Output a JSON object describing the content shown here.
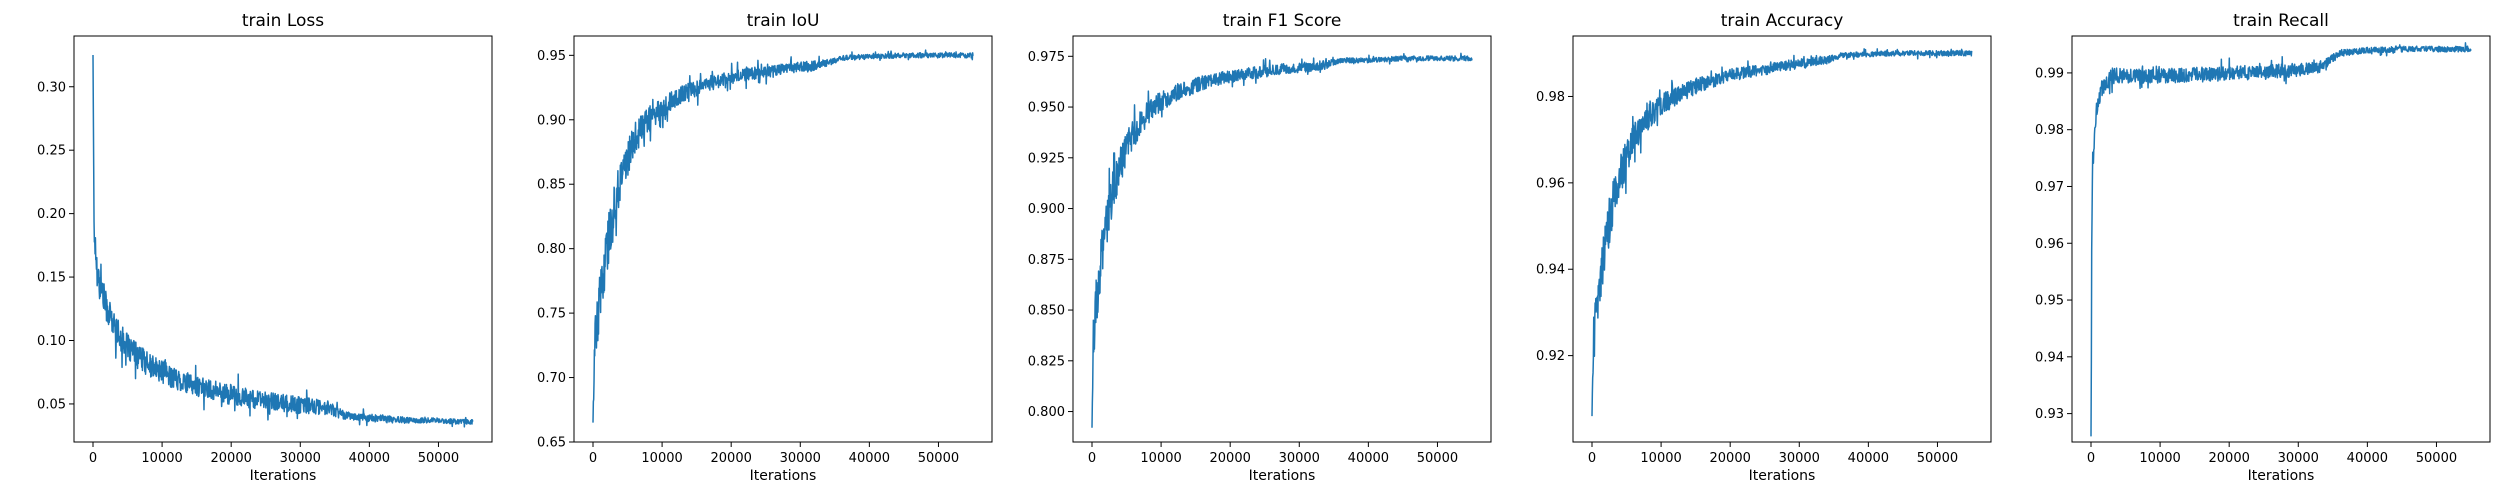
{
  "chart_data": [
    {
      "type": "line",
      "title": "train Loss",
      "xlabel": "Iterations",
      "ylabel": "",
      "xlim": [
        -2750,
        57750
      ],
      "ylim": [
        0.02,
        0.34
      ],
      "xticks": [
        0,
        10000,
        20000,
        30000,
        40000,
        50000
      ],
      "yticks": [
        0.05,
        0.1,
        0.15,
        0.2,
        0.25,
        0.3
      ],
      "ytick_labels": [
        "0.05",
        "0.10",
        "0.15",
        "0.20",
        "0.25",
        "0.30"
      ],
      "series": [
        {
          "x": [
            0,
            150,
            300,
            600,
            1000,
            1500,
            2000,
            3000,
            4000,
            5000,
            7000,
            9000,
            12000,
            15000,
            18000,
            21000,
            24000,
            27000,
            30000,
            32000,
            34000,
            35000,
            36000,
            38000,
            40000,
            43000,
            46000,
            50000,
            53000,
            55000
          ],
          "y": [
            0.325,
            0.19,
            0.175,
            0.155,
            0.145,
            0.135,
            0.125,
            0.112,
            0.102,
            0.095,
            0.085,
            0.078,
            0.07,
            0.064,
            0.06,
            0.056,
            0.053,
            0.051,
            0.049,
            0.048,
            0.047,
            0.045,
            0.042,
            0.04,
            0.039,
            0.038,
            0.037,
            0.037,
            0.036,
            0.036
          ],
          "noise": [
            0,
            0.01,
            0.012,
            0.012,
            0.012,
            0.012,
            0.011,
            0.011,
            0.011,
            0.01,
            0.01,
            0.009,
            0.009,
            0.008,
            0.008,
            0.008,
            0.007,
            0.007,
            0.007,
            0.006,
            0.006,
            0.005,
            0.004,
            0.003,
            0.003,
            0.003,
            0.002,
            0.002,
            0.002,
            0.002
          ]
        }
      ]
    },
    {
      "type": "line",
      "title": "train IoU",
      "xlabel": "Iterations",
      "ylabel": "",
      "xlim": [
        -2750,
        57750
      ],
      "ylim": [
        0.65,
        0.965
      ],
      "xticks": [
        0,
        10000,
        20000,
        30000,
        40000,
        50000
      ],
      "yticks": [
        0.65,
        0.7,
        0.75,
        0.8,
        0.85,
        0.9,
        0.95
      ],
      "ytick_labels": [
        "0.65",
        "0.70",
        "0.75",
        "0.80",
        "0.85",
        "0.90",
        "0.95"
      ],
      "series": [
        {
          "x": [
            0,
            200,
            500,
            1000,
            1500,
            2000,
            3000,
            4000,
            5000,
            6000,
            8000,
            10000,
            13000,
            16000,
            20000,
            24000,
            28000,
            32000,
            34000,
            35000,
            36000,
            40000,
            45000,
            50000,
            55000
          ],
          "y": [
            0.665,
            0.72,
            0.74,
            0.76,
            0.78,
            0.8,
            0.83,
            0.855,
            0.87,
            0.885,
            0.9,
            0.91,
            0.92,
            0.927,
            0.933,
            0.937,
            0.94,
            0.942,
            0.944,
            0.946,
            0.948,
            0.949,
            0.95,
            0.95,
            0.95
          ],
          "noise": [
            0,
            0.02,
            0.02,
            0.02,
            0.02,
            0.02,
            0.018,
            0.016,
            0.014,
            0.012,
            0.01,
            0.008,
            0.007,
            0.006,
            0.005,
            0.005,
            0.004,
            0.004,
            0.003,
            0.002,
            0.002,
            0.002,
            0.002,
            0.002,
            0.002
          ]
        }
      ]
    },
    {
      "type": "line",
      "title": "train F1 Score",
      "xlabel": "Iterations",
      "ylabel": "",
      "xlim": [
        -2750,
        57750
      ],
      "ylim": [
        0.785,
        0.985
      ],
      "xticks": [
        0,
        10000,
        20000,
        30000,
        40000,
        50000
      ],
      "yticks": [
        0.8,
        0.825,
        0.85,
        0.875,
        0.9,
        0.925,
        0.95,
        0.975
      ],
      "ytick_labels": [
        "0.800",
        "0.825",
        "0.850",
        "0.875",
        "0.900",
        "0.925",
        "0.950",
        "0.975"
      ],
      "series": [
        {
          "x": [
            0,
            200,
            500,
            1000,
            1500,
            2000,
            3000,
            4000,
            5000,
            6000,
            8000,
            10000,
            13000,
            16000,
            20000,
            24000,
            28000,
            32000,
            34000,
            35000,
            36000,
            40000,
            45000,
            50000,
            55000
          ],
          "y": [
            0.792,
            0.835,
            0.85,
            0.865,
            0.88,
            0.89,
            0.908,
            0.92,
            0.93,
            0.937,
            0.947,
            0.953,
            0.958,
            0.962,
            0.965,
            0.967,
            0.969,
            0.97,
            0.971,
            0.972,
            0.973,
            0.973,
            0.974,
            0.974,
            0.974
          ],
          "noise": [
            0,
            0.012,
            0.012,
            0.012,
            0.012,
            0.011,
            0.01,
            0.009,
            0.008,
            0.007,
            0.006,
            0.005,
            0.004,
            0.0035,
            0.003,
            0.003,
            0.0025,
            0.0025,
            0.002,
            0.0015,
            0.0012,
            0.0012,
            0.0012,
            0.0012,
            0.0012
          ]
        }
      ]
    },
    {
      "type": "line",
      "title": "train Accuracy",
      "xlabel": "Iterations",
      "ylabel": "",
      "xlim": [
        -2750,
        57750
      ],
      "ylim": [
        0.9,
        0.994
      ],
      "xticks": [
        0,
        10000,
        20000,
        30000,
        40000,
        50000
      ],
      "yticks": [
        0.92,
        0.94,
        0.96,
        0.98
      ],
      "ytick_labels": [
        "0.92",
        "0.94",
        "0.96",
        "0.98"
      ],
      "series": [
        {
          "x": [
            0,
            200,
            500,
            1000,
            1500,
            2000,
            3000,
            4000,
            5000,
            6000,
            8000,
            10000,
            13000,
            16000,
            20000,
            24000,
            28000,
            32000,
            34000,
            35000,
            36000,
            40000,
            45000,
            50000,
            55000
          ],
          "y": [
            0.906,
            0.922,
            0.928,
            0.935,
            0.942,
            0.947,
            0.955,
            0.961,
            0.966,
            0.97,
            0.975,
            0.978,
            0.981,
            0.983,
            0.985,
            0.986,
            0.987,
            0.988,
            0.9885,
            0.989,
            0.9895,
            0.9898,
            0.99,
            0.99,
            0.99
          ],
          "noise": [
            0,
            0.006,
            0.006,
            0.006,
            0.006,
            0.006,
            0.005,
            0.0045,
            0.004,
            0.0035,
            0.003,
            0.0025,
            0.002,
            0.0018,
            0.0015,
            0.0013,
            0.0012,
            0.0011,
            0.001,
            0.0007,
            0.0006,
            0.0006,
            0.0006,
            0.0006,
            0.0006
          ]
        }
      ]
    },
    {
      "type": "line",
      "title": "train Recall",
      "xlabel": "Iterations",
      "ylabel": "",
      "xlim": [
        -2750,
        57750
      ],
      "ylim": [
        0.925,
        0.9965
      ],
      "xticks": [
        0,
        10000,
        20000,
        30000,
        40000,
        50000
      ],
      "yticks": [
        0.93,
        0.94,
        0.95,
        0.96,
        0.97,
        0.98,
        0.99
      ],
      "ytick_labels": [
        "0.93",
        "0.94",
        "0.95",
        "0.96",
        "0.97",
        "0.98",
        "0.99"
      ],
      "series": [
        {
          "x": [
            0,
            100,
            200,
            400,
            700,
            1000,
            1500,
            2000,
            3000,
            5000,
            8000,
            12000,
            16000,
            20000,
            25000,
            30000,
            33000,
            35000,
            36000,
            40000,
            45000,
            50000,
            55000
          ],
          "y": [
            0.926,
            0.955,
            0.97,
            0.978,
            0.982,
            0.985,
            0.987,
            0.988,
            0.9895,
            0.9895,
            0.9895,
            0.9895,
            0.9897,
            0.99,
            0.9902,
            0.9905,
            0.991,
            0.9925,
            0.9935,
            0.994,
            0.9942,
            0.9942,
            0.9942
          ],
          "noise": [
            0,
            0.004,
            0.003,
            0.0025,
            0.002,
            0.0018,
            0.0016,
            0.0015,
            0.0014,
            0.0013,
            0.0013,
            0.0013,
            0.0013,
            0.0012,
            0.0012,
            0.0012,
            0.001,
            0.0008,
            0.0006,
            0.0005,
            0.0005,
            0.0005,
            0.0005
          ]
        }
      ]
    }
  ]
}
